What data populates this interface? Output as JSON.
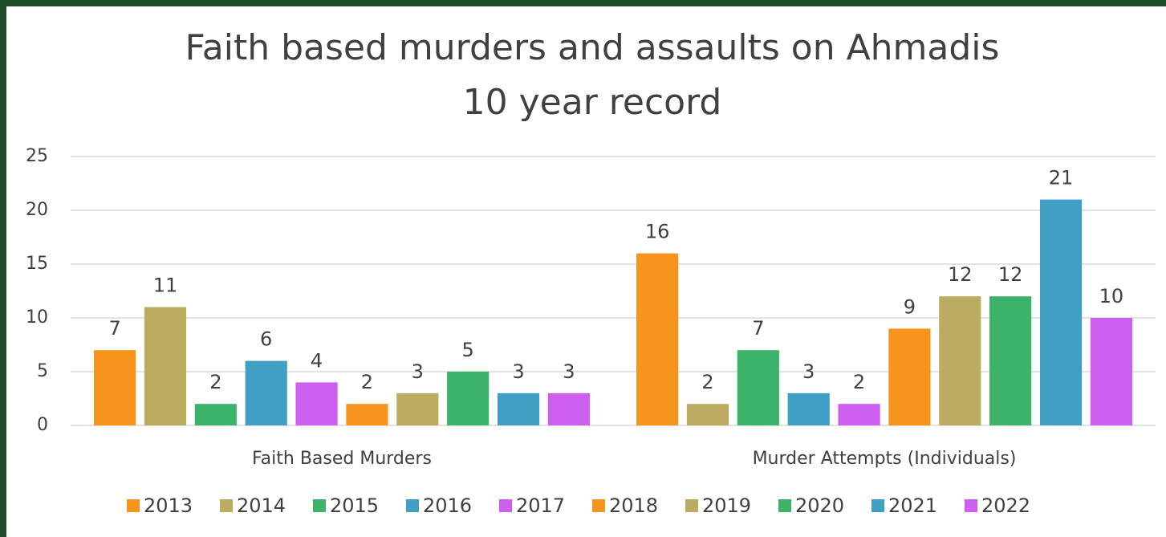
{
  "chart_data": {
    "type": "bar",
    "title": [
      "Faith based murders and assaults on Ahmadis",
      "10 year record"
    ],
    "categories": [
      "Faith Based Murders",
      "Murder Attempts (Individuals)"
    ],
    "series": [
      {
        "name": "2013",
        "color": "#f7941d",
        "values": [
          7,
          16
        ]
      },
      {
        "name": "2014",
        "color": "#bcac62",
        "values": [
          11,
          2
        ]
      },
      {
        "name": "2015",
        "color": "#3db36a",
        "values": [
          2,
          7
        ]
      },
      {
        "name": "2016",
        "color": "#3f9fc4",
        "values": [
          6,
          3
        ]
      },
      {
        "name": "2017",
        "color": "#cc5ef0",
        "values": [
          4,
          2
        ]
      },
      {
        "name": "2018",
        "color": "#f7941d",
        "values": [
          2,
          9
        ]
      },
      {
        "name": "2019",
        "color": "#bcac62",
        "values": [
          3,
          12
        ]
      },
      {
        "name": "2020",
        "color": "#3db36a",
        "values": [
          5,
          12
        ]
      },
      {
        "name": "2021",
        "color": "#3f9fc4",
        "values": [
          3,
          21
        ]
      },
      {
        "name": "2022",
        "color": "#cc5ef0",
        "values": [
          3,
          10
        ]
      }
    ],
    "ylim": [
      0,
      25
    ],
    "yticks": [
      0,
      5,
      10,
      15,
      20,
      25
    ],
    "grid": true,
    "legend": "bottom"
  }
}
